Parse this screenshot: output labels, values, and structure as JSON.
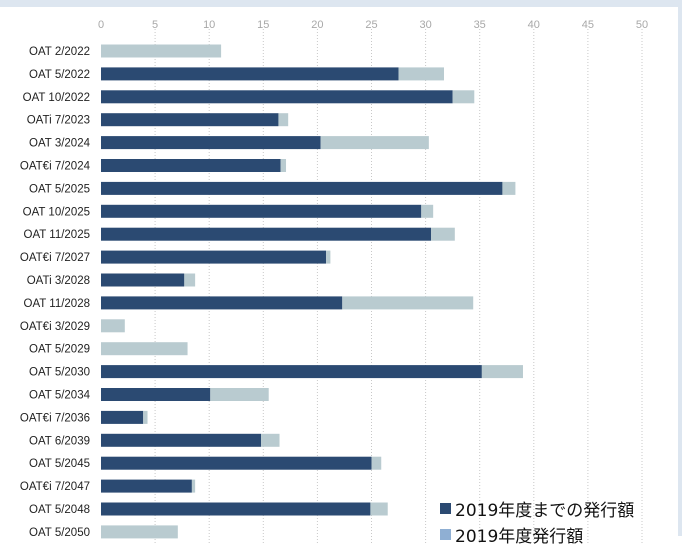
{
  "chart_data": {
    "type": "bar",
    "orientation": "horizontal",
    "stacked": true,
    "categories": [
      "OAT 2/2022",
      "OAT 5/2022",
      "OAT 10/2022",
      "OATi 7/2023",
      "OAT 3/2024",
      "OAT€i 7/2024",
      "OAT 5/2025",
      "OAT 10/2025",
      "OAT 11/2025",
      "OAT€i 7/2027",
      "OATi 3/2028",
      "OAT 11/2028",
      "OAT€i 3/2029",
      "OAT 5/2029",
      "OAT 5/2030",
      "OAT 5/2034",
      "OAT€i 7/2036",
      "OAT 6/2039",
      "OAT 5/2045",
      "OAT€i 7/2047",
      "OAT 5/2048",
      "OAT 5/2050"
    ],
    "series": [
      {
        "name": "2019年度までの発行額",
        "color": "#2b4a72",
        "values": [
          0,
          27.5,
          32.5,
          16.4,
          20.3,
          16.6,
          37.1,
          29.6,
          30.5,
          20.8,
          7.7,
          22.3,
          0,
          0,
          35.2,
          10.1,
          3.9,
          14.8,
          25.0,
          8.4,
          24.9,
          0
        ]
      },
      {
        "name": "2019年度発行額",
        "color": "#b9cbd0",
        "values": [
          11.1,
          4.2,
          2.0,
          0.9,
          10.0,
          0.5,
          1.2,
          1.1,
          2.2,
          0.4,
          1.0,
          12.1,
          2.2,
          8.0,
          3.8,
          5.4,
          0.4,
          1.7,
          0.9,
          0.3,
          1.6,
          7.1
        ]
      }
    ],
    "xlim": [
      0,
      50
    ],
    "xticks": [
      0,
      5,
      10,
      15,
      20,
      25,
      30,
      35,
      40,
      45,
      50
    ],
    "xlabel": "",
    "ylabel": "",
    "title": "",
    "grid": "vertical dotted",
    "legend_position": "bottom-right",
    "legend_swatch_colors": [
      "#2b4a72",
      "#8fafd3"
    ]
  }
}
